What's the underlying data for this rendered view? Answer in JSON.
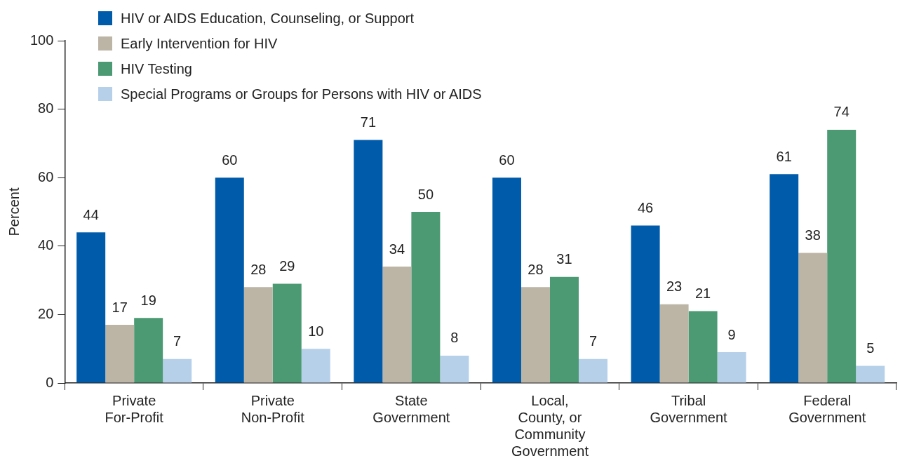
{
  "chart_data": {
    "type": "bar",
    "ylabel": "Percent",
    "categories": [
      "Private For-Profit",
      "Private Non-Profit",
      "State Government",
      "Local, County, or Community Government",
      "Tribal Government",
      "Federal Government"
    ],
    "series": [
      {
        "name": "HIV or AIDS Education, Counseling, or Support",
        "color": "#005baa",
        "values": [
          44,
          60,
          71,
          60,
          46,
          61
        ]
      },
      {
        "name": "Early Intervention for HIV",
        "color": "#bcb5a6",
        "values": [
          17,
          28,
          34,
          28,
          23,
          38
        ]
      },
      {
        "name": "HIV Testing",
        "color": "#4b9a73",
        "values": [
          19,
          29,
          50,
          31,
          21,
          74
        ]
      },
      {
        "name": "Special Programs or Groups for Persons with HIV or AIDS",
        "color": "#b6d0ea",
        "values": [
          7,
          10,
          8,
          7,
          9,
          5
        ]
      }
    ],
    "ylim": [
      0,
      100
    ],
    "yticks": [
      0,
      20,
      40,
      60,
      80,
      100
    ],
    "grid": false,
    "legend": "top left",
    "data_labels": true
  }
}
